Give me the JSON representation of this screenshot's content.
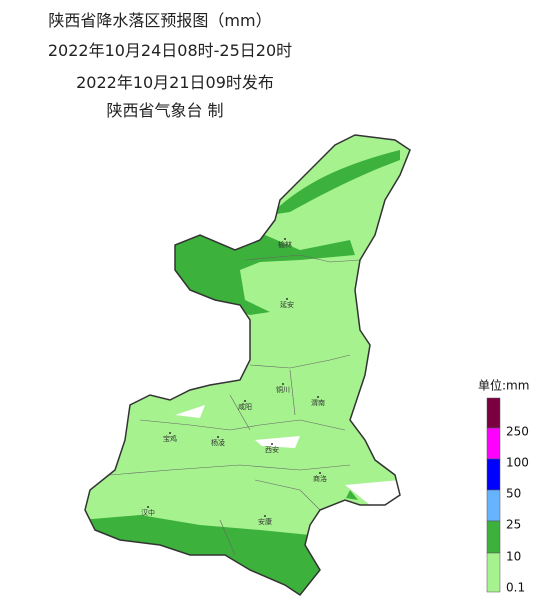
{
  "header": {
    "title": "陕西省降水落区预报图（mm）",
    "period": "2022年10月24日08时-25日20时",
    "issued": "2022年10月21日09时发布",
    "issuer": "陕西省气象台 制"
  },
  "cities": [
    "榆林",
    "延安",
    "铜川",
    "渭南",
    "咸阳",
    "宝鸡",
    "杨凌",
    "西安",
    "商洛",
    "汉中",
    "安康"
  ],
  "legend": {
    "unit": "单位:mm",
    "colors": [
      "#7a0040",
      "#ff00ff",
      "#0000ff",
      "#66b3ff",
      "#3cb23c",
      "#a6f28f"
    ],
    "labels": [
      250,
      100,
      50,
      25,
      10,
      0.1
    ]
  }
}
